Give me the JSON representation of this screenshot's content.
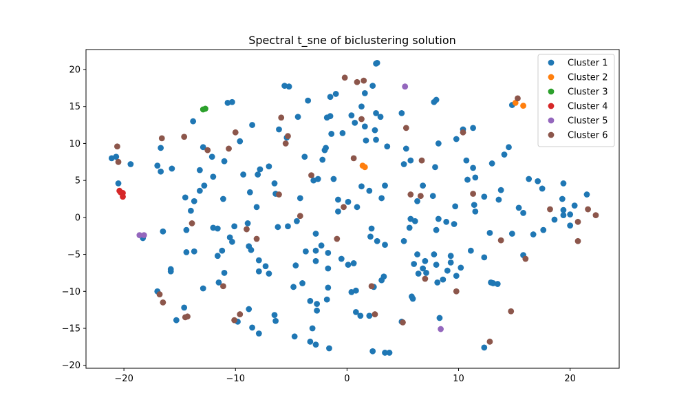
{
  "chart_data": {
    "type": "scatter",
    "title": "Spectral t_sne of biclustering solution",
    "xlabel": "",
    "ylabel": "",
    "xlim": [
      -23.4,
      24.4
    ],
    "ylim": [
      -20.4,
      22.7
    ],
    "xticks": [
      -20,
      -10,
      0,
      10,
      20
    ],
    "yticks": [
      -20,
      -15,
      -10,
      -5,
      0,
      5,
      10,
      15,
      20
    ],
    "grid": false,
    "legend_position": "top-right",
    "series": [
      {
        "name": "Cluster 1",
        "color": "#1f77b4",
        "points": [
          [
            2.7,
            20.9
          ],
          [
            2.6,
            20.8
          ],
          [
            -5.6,
            17.8
          ],
          [
            -5.2,
            17.7
          ],
          [
            -3.5,
            15.8
          ],
          [
            -10.7,
            15.5
          ],
          [
            -10.3,
            15.6
          ],
          [
            -1.5,
            16.3
          ],
          [
            -1.0,
            16.7
          ],
          [
            2.3,
            17.8
          ],
          [
            1.6,
            16.8
          ],
          [
            7.8,
            15.6
          ],
          [
            8.0,
            15.9
          ],
          [
            14.8,
            15.2
          ],
          [
            -13.8,
            13.0
          ],
          [
            -4.4,
            13.6
          ],
          [
            -1.5,
            13.7
          ],
          [
            0.4,
            13.8
          ],
          [
            1.3,
            15.0
          ],
          [
            2.6,
            14.1
          ],
          [
            3.0,
            13.6
          ],
          [
            4.9,
            14.1
          ],
          [
            -1.8,
            13.5
          ],
          [
            -8.5,
            12.5
          ],
          [
            -6.1,
            11.9
          ],
          [
            -1.4,
            11.3
          ],
          [
            -0.4,
            11.4
          ],
          [
            0.7,
            12.8
          ],
          [
            1.6,
            12.3
          ],
          [
            2.5,
            11.8
          ],
          [
            10.4,
            11.9
          ],
          [
            11.3,
            12.1
          ],
          [
            -16.7,
            9.4
          ],
          [
            -12.9,
            9.5
          ],
          [
            -9.6,
            10.3
          ],
          [
            -5.4,
            10.8
          ],
          [
            -1.9,
            9.4
          ],
          [
            -2.0,
            9.1
          ],
          [
            1.7,
            10.4
          ],
          [
            2.6,
            10.5
          ],
          [
            3.6,
            9.6
          ],
          [
            8.2,
            10.0
          ],
          [
            9.8,
            10.6
          ],
          [
            14.5,
            9.5
          ],
          [
            -21.1,
            8.0
          ],
          [
            -20.7,
            8.2
          ],
          [
            -19.4,
            7.2
          ],
          [
            -12.1,
            8.2
          ],
          [
            -11.0,
            7.6
          ],
          [
            -3.8,
            8.2
          ],
          [
            -2.2,
            7.8
          ],
          [
            5.3,
            9.3
          ],
          [
            5.1,
            7.2
          ],
          [
            5.7,
            7.7
          ],
          [
            7.9,
            6.8
          ],
          [
            10.7,
            7.7
          ],
          [
            11.3,
            6.7
          ],
          [
            13.0,
            7.3
          ],
          [
            14.1,
            8.5
          ],
          [
            -20.5,
            4.6
          ],
          [
            -17.0,
            7.0
          ],
          [
            -16.7,
            6.2
          ],
          [
            -15.7,
            6.6
          ],
          [
            -13.2,
            6.4
          ],
          [
            -12.0,
            5.5
          ],
          [
            -9.3,
            5.8
          ],
          [
            -7.8,
            6.5
          ],
          [
            -7.0,
            6.9
          ],
          [
            -8.0,
            5.8
          ],
          [
            -3.0,
            5.0
          ],
          [
            -2.6,
            5.2
          ],
          [
            -1.2,
            5.2
          ],
          [
            1.3,
            4.2
          ],
          [
            2.0,
            3.6
          ],
          [
            3.4,
            4.3
          ],
          [
            6.8,
            4.3
          ],
          [
            10.8,
            5.1
          ],
          [
            11.5,
            5.4
          ],
          [
            16.3,
            5.2
          ],
          [
            17.1,
            4.9
          ],
          [
            17.5,
            3.9
          ],
          [
            19.4,
            4.6
          ],
          [
            -14.5,
            2.7
          ],
          [
            -14.0,
            0.9
          ],
          [
            -13.7,
            2.2
          ],
          [
            -13.2,
            3.6
          ],
          [
            -12.8,
            4.3
          ],
          [
            -11.1,
            2.5
          ],
          [
            -8.7,
            3.4
          ],
          [
            -8.1,
            1.4
          ],
          [
            -6.5,
            4.6
          ],
          [
            -6.4,
            3.2
          ],
          [
            -4.2,
            2.6
          ],
          [
            -0.8,
            2.4
          ],
          [
            -0.8,
            0.8
          ],
          [
            0.1,
            2.1
          ],
          [
            0.9,
            1.4
          ],
          [
            3.1,
            2.6
          ],
          [
            6.3,
            2.2
          ],
          [
            7.7,
            2.9
          ],
          [
            9.7,
            1.5
          ],
          [
            11.4,
            1.7
          ],
          [
            11.5,
            0.8
          ],
          [
            12.3,
            2.8
          ],
          [
            13.6,
            2.4
          ],
          [
            13.8,
            3.7
          ],
          [
            15.4,
            1.3
          ],
          [
            15.8,
            0.6
          ],
          [
            19.3,
            2.5
          ],
          [
            19.4,
            1.0
          ],
          [
            19.4,
            0.3
          ],
          [
            20.0,
            0.4
          ],
          [
            20.4,
            1.6
          ],
          [
            21.5,
            3.1
          ],
          [
            -16.5,
            -1.9
          ],
          [
            -14.4,
            -1.7
          ],
          [
            -12.0,
            -1.4
          ],
          [
            -11.6,
            -1.5
          ],
          [
            -10.5,
            -2.7
          ],
          [
            -10.1,
            -1.2
          ],
          [
            -10.3,
            -3.3
          ],
          [
            -8.9,
            -0.8
          ],
          [
            -6.2,
            -1.3
          ],
          [
            -5.3,
            -1.2
          ],
          [
            -4.5,
            -0.5
          ],
          [
            -2.8,
            -2.2
          ],
          [
            2.2,
            -1.5
          ],
          [
            2.1,
            -2.6
          ],
          [
            2.7,
            -3.2
          ],
          [
            3.4,
            -3.7
          ],
          [
            5.1,
            -3.2
          ],
          [
            5.6,
            -1.4
          ],
          [
            5.7,
            -0.2
          ],
          [
            6.1,
            -0.5
          ],
          [
            8.2,
            -0.2
          ],
          [
            8.0,
            -1.7
          ],
          [
            8.9,
            -0.6
          ],
          [
            9.6,
            -0.9
          ],
          [
            12.8,
            -2.1
          ],
          [
            14.8,
            -2.2
          ],
          [
            16.7,
            -2.3
          ],
          [
            17.6,
            -1.7
          ],
          [
            18.6,
            -0.3
          ],
          [
            20.0,
            -1.1
          ],
          [
            -18.3,
            -2.8
          ],
          [
            -14.4,
            -4.7
          ],
          [
            -13.7,
            -4.6
          ],
          [
            -11.6,
            -5.2
          ],
          [
            -11.2,
            -4.5
          ],
          [
            -8.8,
            -3.9
          ],
          [
            -8.6,
            -4.4
          ],
          [
            -7.9,
            -5.8
          ],
          [
            -7.3,
            -6.6
          ],
          [
            -4.6,
            -6.5
          ],
          [
            -3.7,
            -4.6
          ],
          [
            -2.8,
            -4.5
          ],
          [
            -2.8,
            -5.9
          ],
          [
            -2.3,
            -3.8
          ],
          [
            -1.7,
            -4.8
          ],
          [
            -1.7,
            -6.9
          ],
          [
            -0.5,
            -5.6
          ],
          [
            0.1,
            -6.4
          ],
          [
            0.6,
            -6.2
          ],
          [
            6.0,
            -6.3
          ],
          [
            6.3,
            -5.0
          ],
          [
            6.8,
            -6.9
          ],
          [
            7.0,
            -5.9
          ],
          [
            7.8,
            -5.0
          ],
          [
            8.0,
            -6.4
          ],
          [
            8.1,
            -8.8
          ],
          [
            9.0,
            -7.2
          ],
          [
            9.3,
            -5.2
          ],
          [
            9.3,
            -6.1
          ],
          [
            9.8,
            -7.9
          ],
          [
            10.2,
            -6.8
          ],
          [
            11.1,
            -4.5
          ],
          [
            12.3,
            -5.4
          ],
          [
            12.9,
            -8.8
          ],
          [
            13.5,
            -9.0
          ],
          [
            15.8,
            -5.1
          ],
          [
            -15.8,
            -7.0
          ],
          [
            -15.8,
            -7.3
          ],
          [
            -17.0,
            -10.0
          ],
          [
            -14.6,
            -12.2
          ],
          [
            -12.9,
            -9.6
          ],
          [
            -11.5,
            -8.8
          ],
          [
            -11.0,
            -7.5
          ],
          [
            -7.9,
            -7.3
          ],
          [
            -7.0,
            -7.6
          ],
          [
            -4.8,
            -9.4
          ],
          [
            -4.0,
            -8.9
          ],
          [
            -1.7,
            -9.5
          ],
          [
            0.4,
            -10.1
          ],
          [
            0.8,
            -9.9
          ],
          [
            2.4,
            -9.4
          ],
          [
            3.1,
            -8.5
          ],
          [
            3.3,
            -8.0
          ],
          [
            5.8,
            -10.7
          ],
          [
            5.9,
            -11.0
          ],
          [
            7.1,
            -7.5
          ],
          [
            6.4,
            -7.6
          ],
          [
            8.6,
            -8.4
          ],
          [
            13.1,
            -8.9
          ],
          [
            -15.3,
            -13.9
          ],
          [
            -9.8,
            -14.1
          ],
          [
            -8.8,
            -12.4
          ],
          [
            -8.5,
            -14.9
          ],
          [
            -7.9,
            -15.7
          ],
          [
            -6.5,
            -13.2
          ],
          [
            -6.4,
            -14.0
          ],
          [
            -4.7,
            -16.1
          ],
          [
            -3.3,
            -11.3
          ],
          [
            -2.7,
            -11.7
          ],
          [
            -2.7,
            -12.6
          ],
          [
            -1.8,
            -11.1
          ],
          [
            -3.1,
            -15.0
          ],
          [
            -3.3,
            -16.8
          ],
          [
            -2.8,
            -17.2
          ],
          [
            -1.6,
            -17.7
          ],
          [
            0.8,
            -12.8
          ],
          [
            1.2,
            -13.3
          ],
          [
            2.0,
            -13.3
          ],
          [
            2.3,
            -18.1
          ],
          [
            3.4,
            -18.3
          ],
          [
            3.8,
            -18.3
          ],
          [
            4.9,
            -14.1
          ],
          [
            8.3,
            -13.6
          ],
          [
            12.3,
            -17.6
          ]
        ]
      },
      {
        "name": "Cluster 2",
        "color": "#ff7f0e",
        "points": [
          [
            15.1,
            15.5
          ],
          [
            15.8,
            15.1
          ],
          [
            1.4,
            7.0
          ],
          [
            1.6,
            6.8
          ]
        ]
      },
      {
        "name": "Cluster 3",
        "color": "#2ca02c",
        "points": [
          [
            -12.9,
            14.6
          ],
          [
            -12.7,
            14.7
          ]
        ]
      },
      {
        "name": "Cluster 4",
        "color": "#d62728",
        "points": [
          [
            -20.4,
            3.6
          ],
          [
            -20.1,
            3.3
          ],
          [
            -20.3,
            3.4
          ],
          [
            -20.1,
            2.8
          ]
        ]
      },
      {
        "name": "Cluster 5",
        "color": "#9467bd",
        "points": [
          [
            5.2,
            17.7
          ],
          [
            -18.6,
            -2.4
          ],
          [
            -18.2,
            -2.4
          ],
          [
            8.4,
            -15.1
          ]
        ]
      },
      {
        "name": "Cluster 6",
        "color": "#8c564b",
        "points": [
          [
            -0.2,
            18.9
          ],
          [
            0.9,
            18.3
          ],
          [
            1.5,
            18.5
          ],
          [
            15.3,
            16.1
          ],
          [
            -5.9,
            13.5
          ],
          [
            -5.3,
            11.0
          ],
          [
            -5.5,
            10.0
          ],
          [
            5.3,
            12.1
          ],
          [
            10.4,
            11.5
          ],
          [
            1.3,
            13.3
          ],
          [
            -14.6,
            10.9
          ],
          [
            -16.6,
            10.7
          ],
          [
            -12.5,
            9.1
          ],
          [
            -10.6,
            9.3
          ],
          [
            -10.0,
            11.5
          ],
          [
            -20.6,
            9.6
          ],
          [
            -20.5,
            7.5
          ],
          [
            0.6,
            8.0
          ],
          [
            6.7,
            7.7
          ],
          [
            -3.2,
            5.7
          ],
          [
            -6.1,
            3.1
          ],
          [
            5.7,
            3.1
          ],
          [
            6.6,
            2.9
          ],
          [
            11.3,
            3.2
          ],
          [
            -4.2,
            0.2
          ],
          [
            -0.3,
            1.4
          ],
          [
            -13.9,
            -0.8
          ],
          [
            -9.0,
            -1.6
          ],
          [
            -8.1,
            -2.9
          ],
          [
            -0.9,
            -2.9
          ],
          [
            18.2,
            1.1
          ],
          [
            20.7,
            -0.6
          ],
          [
            21.6,
            1.1
          ],
          [
            22.3,
            0.3
          ],
          [
            20.7,
            -3.2
          ],
          [
            16.0,
            -5.6
          ],
          [
            13.8,
            -3.1
          ],
          [
            7.0,
            -8.3
          ],
          [
            9.8,
            -10.0
          ],
          [
            2.2,
            -9.3
          ],
          [
            -11.1,
            -9.3
          ],
          [
            -16.8,
            -10.4
          ],
          [
            -16.5,
            -11.5
          ],
          [
            -14.5,
            -13.5
          ],
          [
            -14.3,
            -13.4
          ],
          [
            -10.1,
            -13.9
          ],
          [
            -9.6,
            -13.1
          ],
          [
            2.5,
            -13.1
          ],
          [
            5.0,
            -14.2
          ],
          [
            14.7,
            -12.7
          ],
          [
            12.8,
            -16.8
          ]
        ]
      }
    ]
  }
}
